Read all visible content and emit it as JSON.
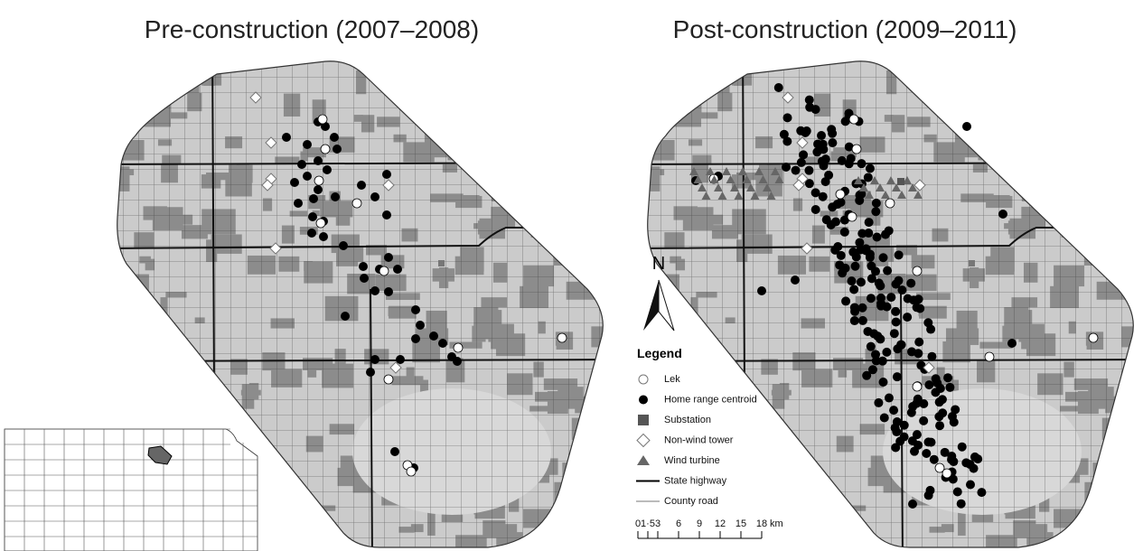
{
  "panels": [
    {
      "title": "Pre-construction (2007–2008)"
    },
    {
      "title": "Post-construction (2009–2011)"
    }
  ],
  "north": "N",
  "legend": {
    "title": "Legend",
    "items": [
      "Lek",
      "Home range centroid",
      "Substation",
      "Non-wind tower",
      "Wind turbine",
      "State highway",
      "County road"
    ]
  },
  "scale_bar": {
    "ticks": [
      "0",
      "1·5",
      "3",
      "6",
      "9",
      "12",
      "15",
      "18"
    ],
    "unit": "km"
  }
}
